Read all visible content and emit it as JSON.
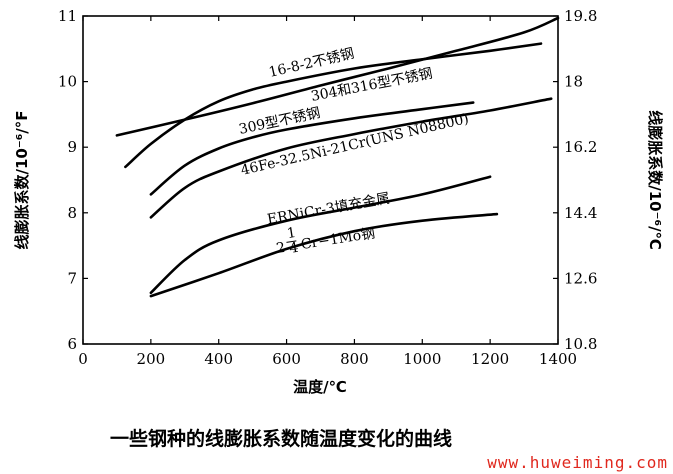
{
  "chart_data": {
    "type": "line",
    "title": "一些钢种的线膨胀系数随温度变化的曲线",
    "xlabel": "温度/℃",
    "ylabel_left": "线膨胀系数/10⁻⁶/°F",
    "ylabel_right": "线膨胀系数/10⁻⁶/℃",
    "xlim": [
      0,
      1400
    ],
    "ylim": [
      6,
      11
    ],
    "ylim_right": [
      10.8,
      19.8
    ],
    "x_ticks": [
      "0",
      "200",
      "400",
      "600",
      "800",
      "1000",
      "1200",
      "1400"
    ],
    "y_ticks_left": [
      "6",
      "7",
      "8",
      "9",
      "10",
      "11"
    ],
    "y_ticks_right": [
      "10.8",
      "12.6",
      "14.4",
      "16.2",
      "18",
      "19.8"
    ],
    "grid": false,
    "legend": "inline labels",
    "series": [
      {
        "name": "16-8-2不锈钢",
        "x": [
          100,
          300,
          500,
          700,
          900,
          1100,
          1300,
          1400
        ],
        "y": [
          9.18,
          9.42,
          9.67,
          9.94,
          10.2,
          10.47,
          10.75,
          10.97
        ]
      },
      {
        "name": "304和316型不锈钢",
        "x": [
          125,
          200,
          300,
          400,
          500,
          600,
          800,
          1000,
          1200,
          1350
        ],
        "y": [
          8.7,
          9.05,
          9.42,
          9.7,
          9.88,
          10.0,
          10.2,
          10.34,
          10.47,
          10.58
        ]
      },
      {
        "name": "309型不锈钢",
        "x": [
          200,
          300,
          400,
          500,
          600,
          800,
          1000,
          1150
        ],
        "y": [
          8.28,
          8.72,
          8.98,
          9.15,
          9.27,
          9.44,
          9.58,
          9.68
        ]
      },
      {
        "name": "46Fe-32.5Ni-21Cr(UNS N08800)",
        "x": [
          200,
          300,
          400,
          600,
          800,
          1000,
          1200,
          1380
        ],
        "y": [
          7.93,
          8.38,
          8.63,
          8.98,
          9.2,
          9.39,
          9.56,
          9.74
        ]
      },
      {
        "name": "ERNiCr-3填充金属",
        "x": [
          200,
          300,
          400,
          600,
          800,
          1000,
          1200
        ],
        "y": [
          6.78,
          7.28,
          7.58,
          7.88,
          8.08,
          8.28,
          8.55
        ]
      },
      {
        "name": "2¼Cr-1Mo钢",
        "x": [
          200,
          400,
          600,
          800,
          1000,
          1220
        ],
        "y": [
          6.73,
          7.08,
          7.45,
          7.72,
          7.88,
          7.98
        ]
      }
    ]
  },
  "watermark": "www.huweiming.com"
}
